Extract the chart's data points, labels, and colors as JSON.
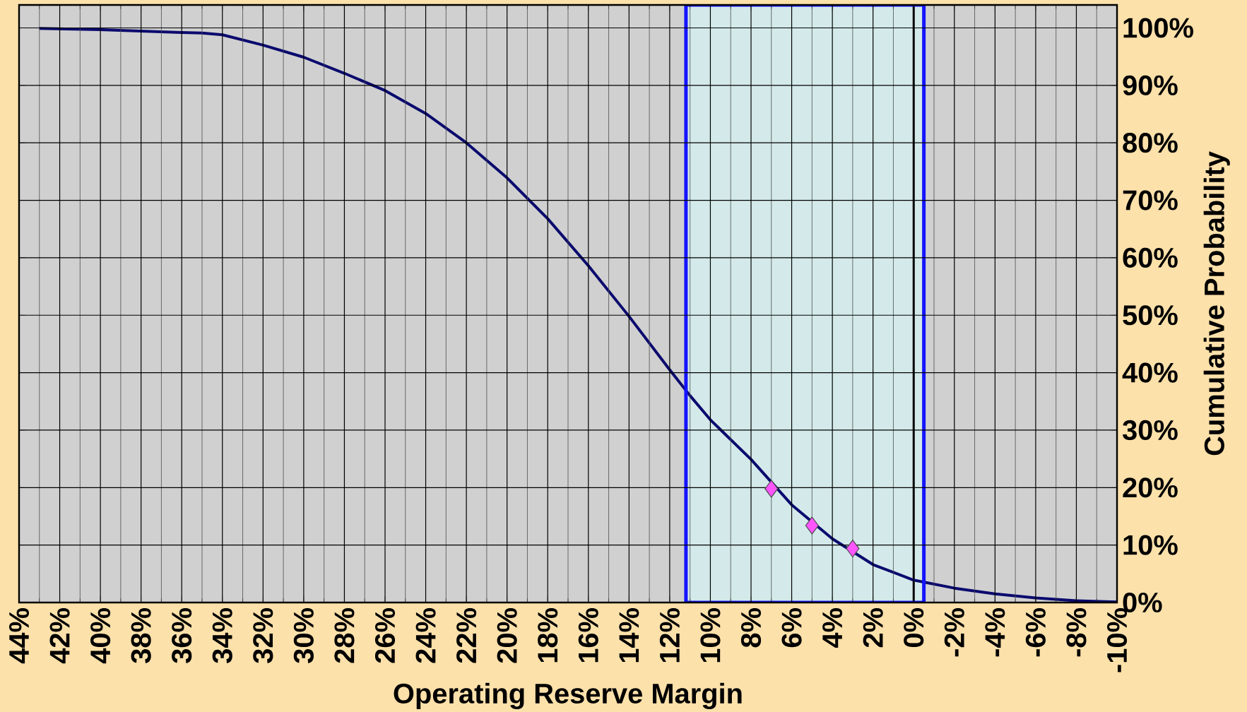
{
  "chart_data": {
    "type": "line",
    "xlabel": "Operating Reserve Margin",
    "ylabel": "Cumulative Probability",
    "xlim": [
      44,
      -10
    ],
    "xticks": [
      {
        "value": 44,
        "label": "44%"
      },
      {
        "value": 42,
        "label": "42%"
      },
      {
        "value": 40,
        "label": "40%"
      },
      {
        "value": 38,
        "label": "38%"
      },
      {
        "value": 36,
        "label": "36%"
      },
      {
        "value": 34,
        "label": "34%"
      },
      {
        "value": 32,
        "label": "32%"
      },
      {
        "value": 30,
        "label": "30%"
      },
      {
        "value": 28,
        "label": "28%"
      },
      {
        "value": 26,
        "label": "26%"
      },
      {
        "value": 24,
        "label": "24%"
      },
      {
        "value": 22,
        "label": "22%"
      },
      {
        "value": 20,
        "label": "20%"
      },
      {
        "value": 18,
        "label": "18%"
      },
      {
        "value": 16,
        "label": "16%"
      },
      {
        "value": 14,
        "label": "14%"
      },
      {
        "value": 12,
        "label": "12%"
      },
      {
        "value": 10,
        "label": "10%"
      },
      {
        "value": 8,
        "label": "8%"
      },
      {
        "value": 6,
        "label": "6%"
      },
      {
        "value": 4,
        "label": "4%"
      },
      {
        "value": 2,
        "label": "2%"
      },
      {
        "value": 0,
        "label": "0%"
      },
      {
        "value": -2,
        "label": "-2%"
      },
      {
        "value": -4,
        "label": "-4%"
      },
      {
        "value": -6,
        "label": "-6%"
      },
      {
        "value": -8,
        "label": "-8%"
      },
      {
        "value": -10,
        "label": "-10%"
      }
    ],
    "ylim": [
      0,
      104
    ],
    "yticks": [
      {
        "value": 0,
        "label": "0%"
      },
      {
        "value": 10,
        "label": "10%"
      },
      {
        "value": 20,
        "label": "20%"
      },
      {
        "value": 30,
        "label": "30%"
      },
      {
        "value": 40,
        "label": "40%"
      },
      {
        "value": 50,
        "label": "50%"
      },
      {
        "value": 60,
        "label": "60%"
      },
      {
        "value": 70,
        "label": "70%"
      },
      {
        "value": 80,
        "label": "80%"
      },
      {
        "value": 90,
        "label": "90%"
      },
      {
        "value": 100,
        "label": "100%"
      }
    ],
    "grid": true,
    "series": [
      {
        "color": "#0a0a6e",
        "marker": "none",
        "x": [
          43,
          40,
          36,
          35,
          34,
          32,
          30,
          28,
          26,
          24,
          22,
          20,
          18,
          16,
          14,
          12,
          11,
          10,
          8,
          6,
          4,
          2,
          0,
          -2,
          -4,
          -6,
          -8,
          -10
        ],
        "values": [
          99.9,
          99.7,
          99.2,
          99.1,
          98.8,
          97,
          94.9,
          92.1,
          89.1,
          85.1,
          80,
          73.9,
          66.8,
          58.6,
          49.8,
          40.5,
          36,
          31.8,
          24.9,
          17,
          11.1,
          6.6,
          3.9,
          2.5,
          1.5,
          0.8,
          0.3,
          0.1
        ]
      },
      {
        "type": "scatter",
        "color": "#ff55ff",
        "marker": "diamond",
        "x": [
          7,
          5,
          3
        ],
        "values": [
          19.8,
          13.4,
          9.4
        ]
      }
    ],
    "bands": [
      {
        "axis": "x",
        "from": 11.2,
        "to": -0.5,
        "color": "#d4eaea"
      }
    ],
    "ref_lines": [
      {
        "axis": "x",
        "value": 0,
        "color": "#000000"
      }
    ]
  }
}
